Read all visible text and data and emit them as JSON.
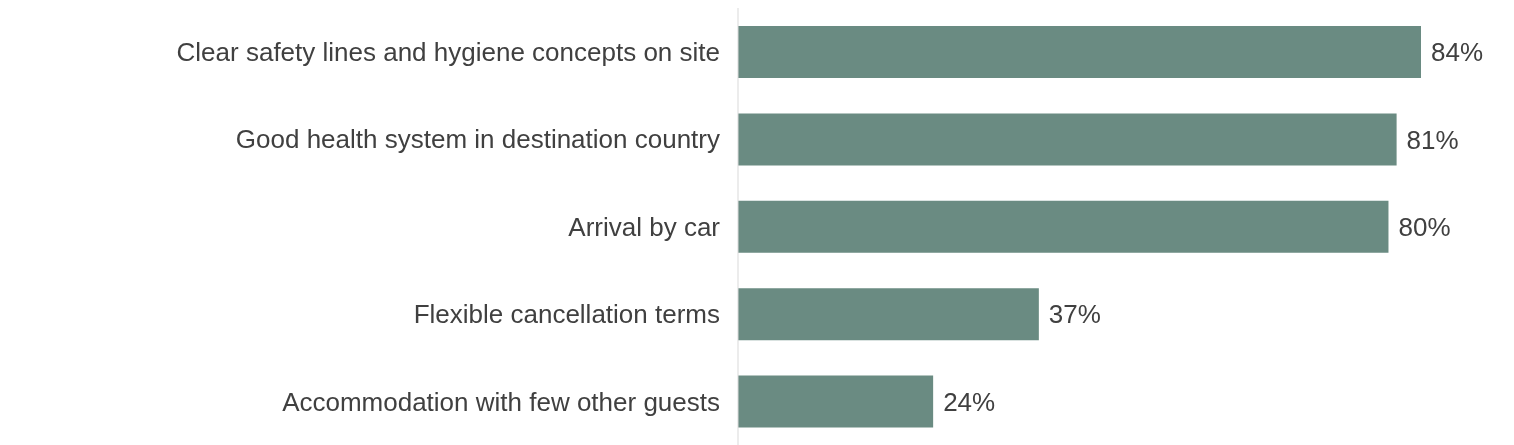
{
  "chart_data": {
    "type": "bar",
    "orientation": "horizontal",
    "categories": [
      "Clear safety lines and hygiene concepts on site",
      "Good health system in destination country",
      "Arrival by car",
      "Flexible cancellation terms",
      "Accommodation with few other guests"
    ],
    "values": [
      84,
      81,
      80,
      37,
      24
    ],
    "value_labels": [
      "84%",
      "81%",
      "80%",
      "37%",
      "24%"
    ],
    "color": "#6a8b82",
    "tick_labels": "y",
    "grid": false
  }
}
